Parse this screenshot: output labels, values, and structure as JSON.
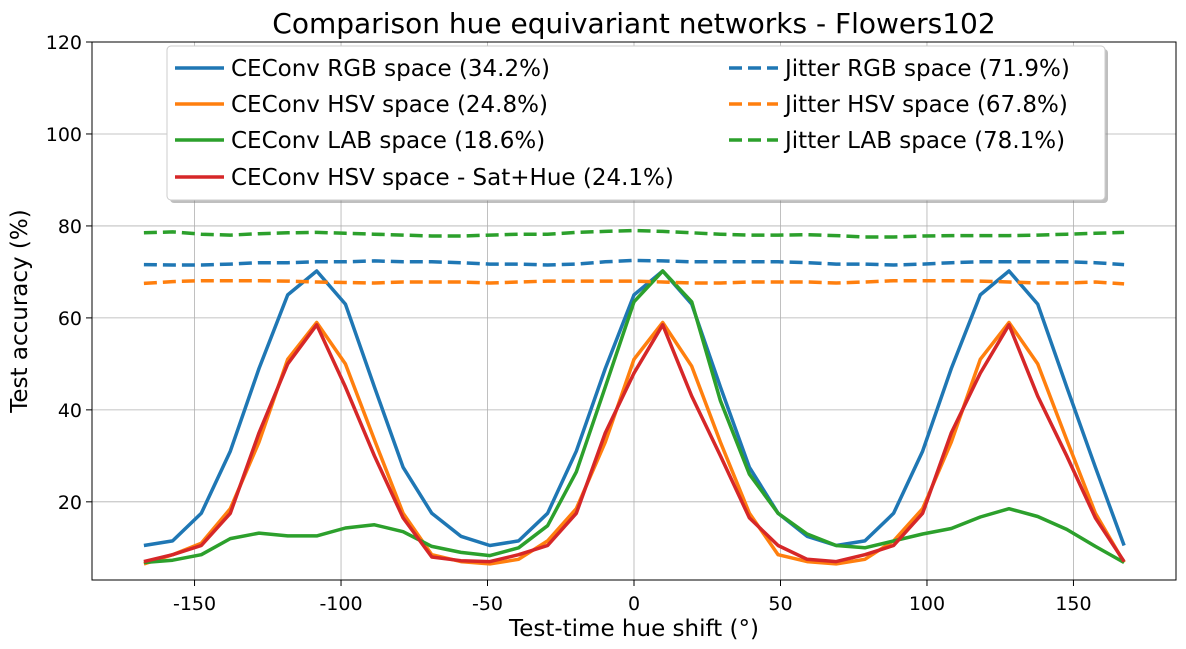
{
  "chart_data": {
    "type": "line",
    "title": "Comparison hue equivariant networks - Flowers102",
    "xlabel": "Test-time hue shift (°)",
    "ylabel": "Test accuracy (%)",
    "xlim": [
      -185,
      185
    ],
    "ylim": [
      3,
      120
    ],
    "xticks": [
      -150,
      -100,
      -50,
      0,
      50,
      100,
      150
    ],
    "yticks": [
      20,
      40,
      60,
      80,
      100,
      120
    ],
    "grid": true,
    "legend_position": "top-center",
    "x": [
      -167.3,
      -157.5,
      -147.7,
      -137.8,
      -128,
      -118.2,
      -108.3,
      -98.5,
      -88.6,
      -78.8,
      -69,
      -59.1,
      -49.2,
      -39.4,
      -29.5,
      -19.7,
      -9.8,
      0,
      9.8,
      19.7,
      29.5,
      39.4,
      49.2,
      59.1,
      69,
      78.8,
      88.6,
      98.5,
      108.3,
      118.2,
      128,
      137.8,
      147.7,
      157.5,
      167.3
    ],
    "series": [
      {
        "name": "CEConv RGB space (34.2%)",
        "color": "#1f77b4",
        "dash": "solid",
        "values": [
          10.5,
          11.5,
          17.5,
          31,
          49,
          65,
          70.2,
          63,
          45,
          27.5,
          17.5,
          12.5,
          10.5,
          11.5,
          17.5,
          31,
          49,
          65,
          70.2,
          63,
          45,
          27.5,
          17.5,
          12.5,
          10.5,
          11.5,
          17.5,
          31,
          49,
          65,
          70.2,
          63,
          45,
          27.5,
          10.5
        ]
      },
      {
        "name": "CEConv HSV space (24.8%)",
        "color": "#ff7f0e",
        "dash": "solid",
        "values": [
          6.5,
          8.5,
          11,
          18.5,
          33,
          51,
          59,
          50,
          33.5,
          17.5,
          8.5,
          7,
          6.5,
          7.5,
          11.5,
          18.5,
          33,
          51,
          59,
          49.5,
          33,
          17.5,
          8.5,
          7,
          6.5,
          7.5,
          11.5,
          18.5,
          33,
          51,
          59,
          50,
          33.5,
          17.5,
          6.8
        ]
      },
      {
        "name": "CEConv LAB space (18.6%)",
        "color": "#2ca02c",
        "dash": "solid",
        "values": [
          6.8,
          7.3,
          8.5,
          12,
          13.2,
          12.6,
          12.6,
          14.3,
          15,
          13.5,
          10.3,
          9,
          8.3,
          10,
          14.8,
          26.5,
          45,
          63.5,
          70.2,
          63.5,
          42,
          26,
          17.5,
          13,
          10.5,
          10,
          11.5,
          13,
          14.2,
          16.7,
          18.5,
          16.8,
          14,
          10.3,
          6.8
        ]
      },
      {
        "name": "CEConv HSV space - Sat+Hue (24.1%)",
        "color": "#d62728",
        "dash": "solid",
        "values": [
          7,
          8.5,
          10.5,
          17.5,
          35,
          50,
          58.5,
          45,
          30,
          16.5,
          8,
          7.2,
          7,
          8.5,
          10.5,
          17.5,
          35,
          48,
          58.5,
          43,
          30,
          16.5,
          10.5,
          7.5,
          7,
          8.5,
          10.5,
          17.5,
          35,
          48,
          58.5,
          43,
          30,
          16.5,
          7
        ]
      },
      {
        "name": "Jitter RGB space (71.9%)",
        "color": "#1f77b4",
        "dash": "dashed",
        "values": [
          71.6,
          71.5,
          71.5,
          71.7,
          72,
          72,
          72.2,
          72.2,
          72.4,
          72.2,
          72.2,
          72,
          71.7,
          71.7,
          71.5,
          71.7,
          72.2,
          72.5,
          72.4,
          72.2,
          72.2,
          72.2,
          72.2,
          72,
          71.7,
          71.7,
          71.5,
          71.7,
          72,
          72.2,
          72.2,
          72.2,
          72.2,
          72,
          71.6
        ]
      },
      {
        "name": "Jitter HSV space (67.8%)",
        "color": "#ff7f0e",
        "dash": "dashed",
        "values": [
          67.5,
          67.9,
          68.1,
          68.1,
          68.1,
          68,
          67.8,
          67.7,
          67.6,
          67.8,
          67.8,
          67.8,
          67.6,
          67.8,
          68,
          68,
          68,
          68,
          67.8,
          67.6,
          67.6,
          67.8,
          67.8,
          67.8,
          67.6,
          67.8,
          68.1,
          68.1,
          68.1,
          68,
          67.8,
          67.6,
          67.6,
          67.8,
          67.4
        ]
      },
      {
        "name": "Jitter LAB space (78.1%)",
        "color": "#2ca02c",
        "dash": "dashed",
        "values": [
          78.5,
          78.7,
          78.2,
          78,
          78.3,
          78.5,
          78.6,
          78.4,
          78.2,
          78,
          77.8,
          77.8,
          78,
          78.2,
          78.2,
          78.6,
          78.8,
          79,
          78.8,
          78.5,
          78.2,
          78,
          78,
          78.1,
          77.9,
          77.6,
          77.6,
          77.8,
          77.9,
          77.9,
          77.9,
          78,
          78.2,
          78.4,
          78.6
        ]
      }
    ]
  }
}
